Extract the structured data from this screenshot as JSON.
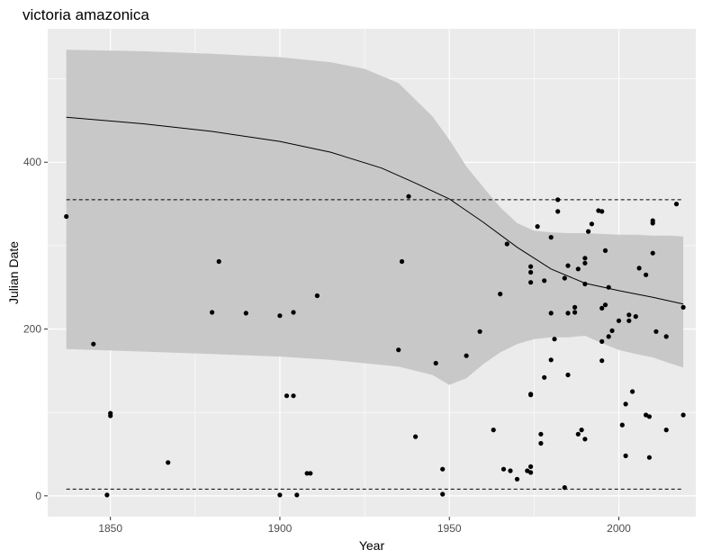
{
  "chart_data": {
    "type": "scatter",
    "title": "victoria amazonica",
    "xlabel": "Year",
    "ylabel": "Julian Date",
    "xlim": [
      1831.5,
      2022.7
    ],
    "ylim": [
      -25,
      560
    ],
    "x_ticks": [
      1850,
      1900,
      1950,
      2000
    ],
    "y_ticks": [
      0,
      200,
      400
    ],
    "x_tick_labels": [
      "1850",
      "1900",
      "1950",
      "2000"
    ],
    "y_tick_labels": [
      "0",
      "200",
      "400"
    ],
    "grid": true,
    "background": "#ebebeb",
    "gridline_color": "#ffffff",
    "ribbon_color": "#c8c8c8",
    "point_color": "#000000",
    "points": {
      "x": [
        1837,
        1845,
        1849,
        1850,
        1850,
        1867,
        1880,
        1882,
        1890,
        1900,
        1900,
        1902,
        1904,
        1904,
        1905,
        1908,
        1909,
        1911,
        1935,
        1936,
        1938,
        1940,
        1946,
        1948,
        1948,
        1955,
        1959,
        1963,
        1965,
        1966,
        1967,
        1968,
        1970,
        1973,
        1974,
        1974,
        1974,
        1974,
        1974,
        1974,
        1974,
        1976,
        1977,
        1977,
        1978,
        1978,
        1980,
        1980,
        1980,
        1981,
        1982,
        1982,
        1984,
        1984,
        1985,
        1985,
        1985,
        1987,
        1987,
        1988,
        1988,
        1989,
        1990,
        1990,
        1990,
        1990,
        1991,
        1992,
        1994,
        1995,
        1995,
        1995,
        1995,
        1996,
        1996,
        1997,
        1997,
        1998,
        2000,
        2001,
        2002,
        2002,
        2003,
        2003,
        2004,
        2005,
        2006,
        2008,
        2008,
        2009,
        2009,
        2010,
        2010,
        2010,
        2011,
        2014,
        2014,
        2017,
        2019,
        2019
      ],
      "y": [
        335,
        182,
        1,
        96,
        99,
        40,
        220,
        281,
        219,
        216,
        1,
        120,
        220,
        120,
        1,
        27,
        27,
        240,
        175,
        281,
        359,
        71,
        159,
        2,
        32,
        168,
        197,
        79,
        242,
        32,
        302,
        30,
        20,
        30,
        122,
        121,
        35,
        275,
        268,
        256,
        28,
        323,
        74,
        63,
        142,
        258,
        163,
        219,
        310,
        188,
        341,
        355,
        10,
        261,
        145,
        276,
        219,
        220,
        226,
        272,
        74,
        79,
        285,
        279,
        254,
        68,
        317,
        326,
        342,
        162,
        185,
        341,
        225,
        294,
        229,
        191,
        250,
        198,
        210,
        85,
        110,
        48,
        210,
        217,
        125,
        215,
        273,
        265,
        97,
        95,
        46,
        291,
        330,
        327,
        197,
        79,
        191,
        350,
        226,
        97
      ]
    },
    "trend": {
      "x": [
        1837,
        1860,
        1880,
        1900,
        1915,
        1930,
        1940,
        1950,
        1960,
        1970,
        1980,
        1990,
        2000,
        2010,
        2019
      ],
      "y": [
        454,
        446,
        437,
        425,
        412,
        393,
        375,
        356,
        328,
        298,
        272,
        255,
        246,
        238,
        230
      ]
    },
    "ribbon": {
      "x": [
        1837,
        1860,
        1880,
        1900,
        1915,
        1925,
        1935,
        1945,
        1950,
        1955,
        1960,
        1965,
        1970,
        1975,
        1980,
        1985,
        1990,
        1995,
        2000,
        2005,
        2010,
        2015,
        2019
      ],
      "upper": [
        535,
        533,
        530,
        526,
        520,
        512,
        495,
        455,
        427,
        395,
        370,
        346,
        327,
        318,
        316,
        315,
        315,
        314,
        313,
        313,
        312,
        312,
        311
      ],
      "lower": [
        176,
        173,
        170,
        167,
        163,
        159,
        155,
        145,
        133,
        141,
        158,
        172,
        182,
        188,
        190,
        190,
        192,
        183,
        175,
        170,
        166,
        159,
        154
      ]
    },
    "bounds": {
      "x": [
        1837,
        2019
      ],
      "upper": 355,
      "lower": 8
    }
  }
}
